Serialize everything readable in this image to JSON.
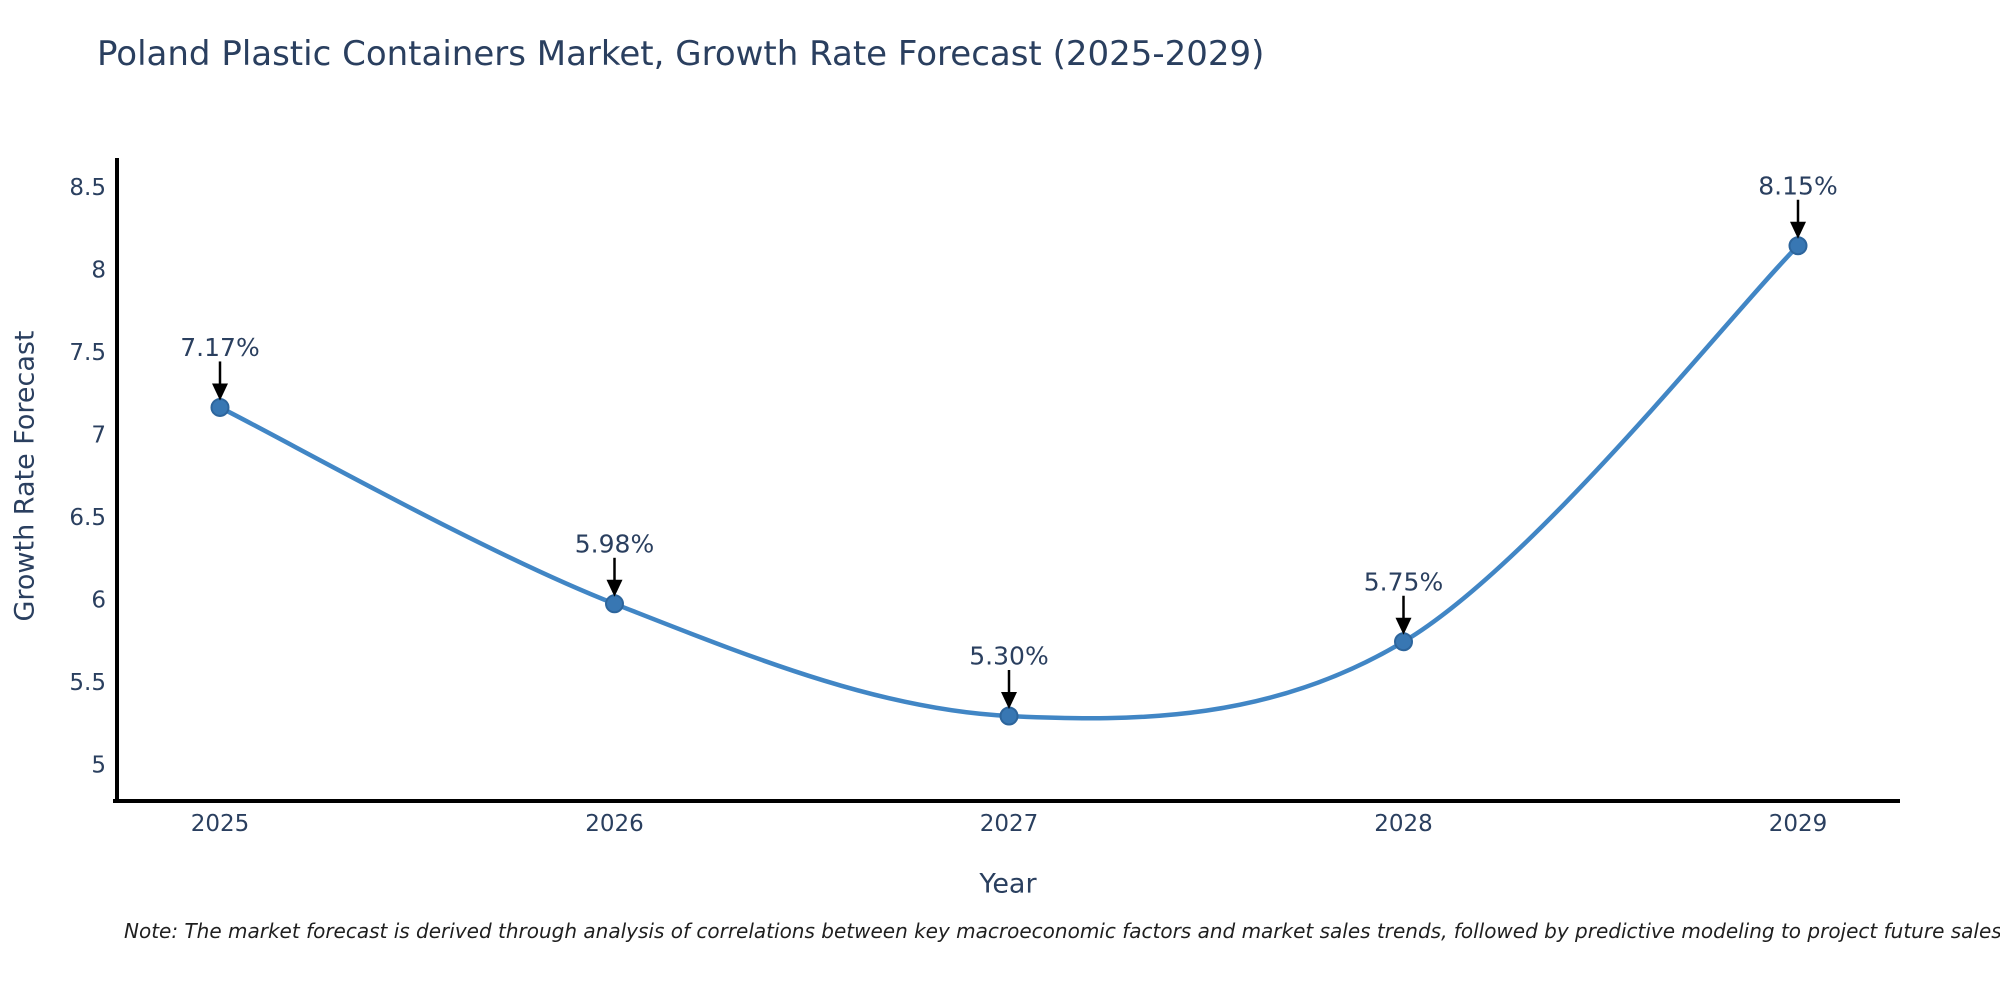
{
  "title": "Poland Plastic Containers Market, Growth Rate Forecast (2025-2029)",
  "note": "Note: The market forecast is derived through analysis of correlations between key macroeconomic factors and market sales trends, followed by predictive modeling to project future sales.",
  "chart_data": {
    "type": "line",
    "line_style": "spline",
    "x": [
      2025,
      2026,
      2027,
      2028,
      2029
    ],
    "xtick_labels": [
      "2025",
      "2026",
      "2027",
      "2028",
      "2029"
    ],
    "series": [
      {
        "name": "Growth Rate Forecast",
        "values": [
          7.17,
          5.98,
          5.3,
          5.75,
          8.15
        ]
      }
    ],
    "point_labels": [
      "7.17%",
      "5.98%",
      "5.30%",
      "5.75%",
      "8.15%"
    ],
    "xlabel": "Year",
    "ylabel": "Growth Rate Forecast",
    "yticks": [
      "8.5",
      "8",
      "7.5",
      "7",
      "6.5",
      "6",
      "5.5",
      "5"
    ],
    "ytick_values": [
      8.5,
      8.0,
      7.5,
      7.0,
      6.5,
      6.0,
      5.5,
      5.0
    ],
    "ylim": [
      4.79,
      8.68
    ],
    "grid": false,
    "legend": "none",
    "annotations": "value labels with downward arrows above each point",
    "colors": {
      "line": "#4186c5",
      "marker_fill": "#3877b3",
      "marker_stroke": "#2d659c",
      "axis": "#000000",
      "label_text": "#2a3f5f",
      "annotation_arrow": "#000000",
      "note_text": "#1f1f1f"
    }
  }
}
